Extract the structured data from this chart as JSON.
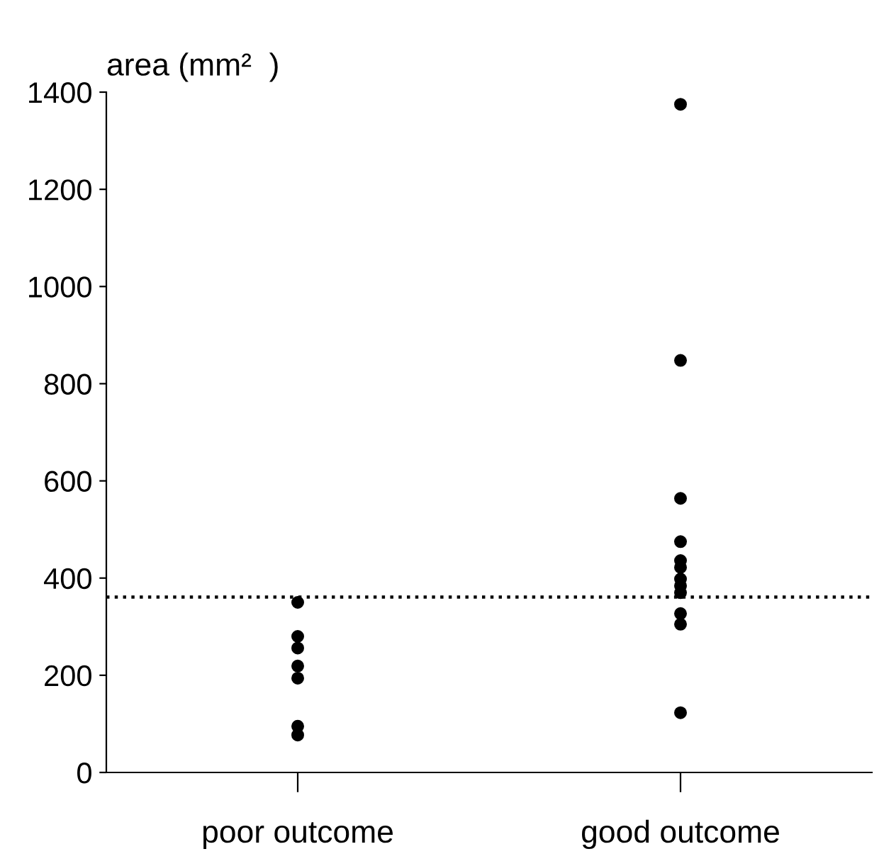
{
  "chart_data": {
    "type": "scatter",
    "ylabel": "area (mm²  )",
    "categories": [
      "poor outcome",
      "good outcome"
    ],
    "series": [
      {
        "color": "#000000",
        "x": [
          "poor outcome",
          "poor outcome",
          "poor outcome",
          "poor outcome",
          "poor outcome",
          "poor outcome",
          "poor outcome"
        ],
        "values": [
          350,
          280,
          256,
          219,
          194,
          95,
          77
        ]
      },
      {
        "color": "#000000",
        "x": [
          "good outcome",
          "good outcome",
          "good outcome",
          "good outcome",
          "good outcome",
          "good outcome",
          "good outcome",
          "good outcome",
          "good outcome",
          "good outcome",
          "good outcome",
          "good outcome"
        ],
        "values": [
          1375,
          848,
          564,
          475,
          436,
          422,
          398,
          384,
          370,
          327,
          305,
          123
        ]
      }
    ],
    "ylim": [
      0,
      1400
    ],
    "yticks": [
      0,
      200,
      400,
      600,
      800,
      1000,
      1200,
      1400
    ],
    "ref_lines": [
      {
        "axis": "y",
        "value": 361,
        "line_style": "dotted",
        "color": "#000000"
      }
    ],
    "marker": "circle",
    "grid": false,
    "legend": false
  }
}
